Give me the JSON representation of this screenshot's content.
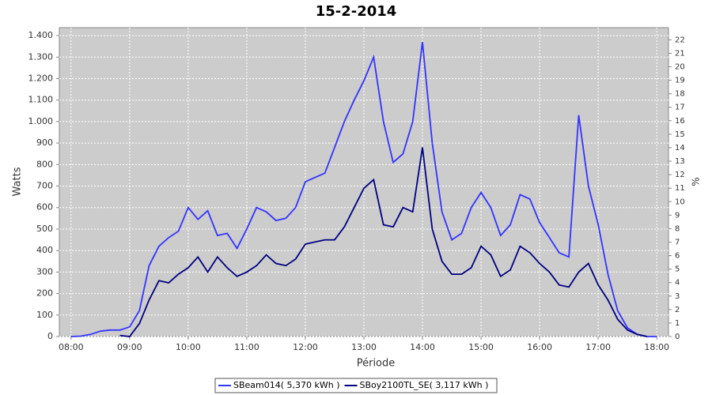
{
  "chart_data": {
    "type": "line",
    "title": "15-2-2014",
    "x_label": "Période",
    "y_label": "Watts",
    "y2_label": "%",
    "x": [
      "08:00",
      "08:10",
      "08:20",
      "08:30",
      "08:40",
      "08:50",
      "09:00",
      "09:10",
      "09:20",
      "09:30",
      "09:40",
      "09:50",
      "10:00",
      "10:10",
      "10:20",
      "10:30",
      "10:40",
      "10:50",
      "11:00",
      "11:10",
      "11:20",
      "11:30",
      "11:40",
      "11:50",
      "12:00",
      "12:10",
      "12:20",
      "12:30",
      "12:40",
      "12:50",
      "13:00",
      "13:10",
      "13:20",
      "13:30",
      "13:40",
      "13:50",
      "14:00",
      "14:10",
      "14:20",
      "14:30",
      "14:40",
      "14:50",
      "15:00",
      "15:10",
      "15:20",
      "15:30",
      "15:40",
      "15:50",
      "16:00",
      "16:10",
      "16:20",
      "16:30",
      "16:40",
      "16:50",
      "17:00",
      "17:10",
      "17:20",
      "17:30",
      "17:40",
      "17:50",
      "18:00"
    ],
    "series": [
      {
        "name": "SBeam014( 5,370 kWh )",
        "color": "#3333ff",
        "values": [
          0,
          2,
          10,
          25,
          30,
          30,
          45,
          120,
          330,
          420,
          460,
          490,
          600,
          545,
          585,
          470,
          480,
          410,
          500,
          600,
          580,
          540,
          550,
          600,
          720,
          740,
          760,
          880,
          1000,
          1100,
          1190,
          1300,
          1000,
          810,
          850,
          1000,
          1370,
          900,
          580,
          450,
          480,
          600,
          670,
          600,
          470,
          520,
          660,
          640,
          530,
          460,
          390,
          370,
          1030,
          700,
          520,
          290,
          120,
          40,
          10,
          0,
          0
        ]
      },
      {
        "name": "SBoy2100TL_SE( 3,117 kWh )",
        "color": "#000080",
        "values": [
          null,
          null,
          null,
          null,
          null,
          5,
          0,
          60,
          170,
          260,
          250,
          290,
          320,
          370,
          300,
          370,
          320,
          280,
          300,
          330,
          380,
          340,
          330,
          360,
          430,
          440,
          450,
          450,
          510,
          600,
          690,
          730,
          520,
          510,
          600,
          580,
          880,
          500,
          350,
          290,
          290,
          320,
          420,
          380,
          280,
          310,
          420,
          390,
          340,
          300,
          240,
          230,
          300,
          340,
          240,
          170,
          80,
          30,
          10,
          0,
          null
        ]
      }
    ],
    "xlim": [
      "07:48",
      "18:12"
    ],
    "xticks": [
      "08:00",
      "09:00",
      "10:00",
      "11:00",
      "12:00",
      "13:00",
      "14:00",
      "15:00",
      "16:00",
      "17:00",
      "18:00"
    ],
    "ylim": [
      0,
      1437
    ],
    "yticks": [
      0,
      100,
      200,
      300,
      400,
      500,
      600,
      700,
      800,
      900,
      {
        "value": 1000,
        "label": "1.000"
      },
      {
        "value": 1100,
        "label": "1.100"
      },
      {
        "value": 1200,
        "label": "1.200"
      },
      {
        "value": 1300,
        "label": "1.300"
      },
      {
        "value": 1400,
        "label": "1.400"
      }
    ],
    "y2lim": [
      0,
      22.9
    ],
    "y2ticks": [
      0,
      1,
      2,
      3,
      4,
      5,
      6,
      7,
      8,
      9,
      10,
      11,
      12,
      13,
      14,
      15,
      16,
      17,
      18,
      19,
      20,
      21,
      22
    ],
    "grid": true,
    "legend": "bottom"
  }
}
